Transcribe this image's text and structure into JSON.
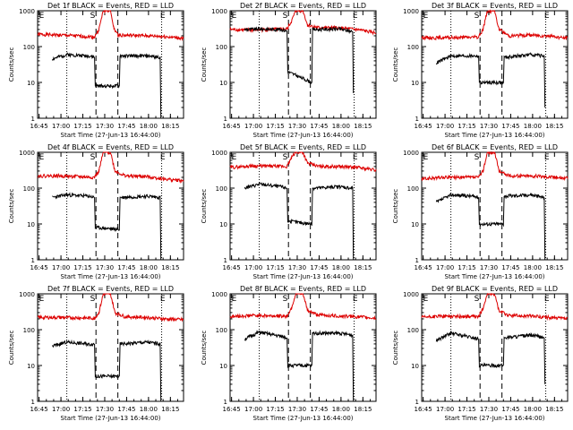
{
  "colors": {
    "events": "#000000",
    "lld": "#dd0000",
    "axis": "#000000"
  },
  "panel_common": {
    "ylabel": "Counts/sec",
    "y_tick_labels": [
      "1",
      "10",
      "100",
      "1000"
    ],
    "ylim": [
      1,
      1000
    ],
    "y_scale": "log",
    "xlabel": "Start Time (27-Jun-13 16:44:00)",
    "x_tick_labels": [
      "16:45",
      "17:00",
      "17:15",
      "17:30",
      "17:45",
      "18:00",
      "18:15"
    ],
    "xlim_minutes": [
      0,
      100
    ],
    "markers": [
      "E",
      "S",
      "E"
    ]
  },
  "chart_data": [
    {
      "type": "line",
      "title": "Det 1f BLACK = Events, RED = LLD",
      "dotted_x": [
        20,
        85
      ],
      "dashed_x": [
        40,
        55
      ],
      "series": [
        {
          "name": "LLD",
          "values": [
            [
              0,
              220
            ],
            [
              15,
              210
            ],
            [
              35,
              190
            ],
            [
              39,
              185
            ],
            [
              42,
              300
            ],
            [
              45,
              1000
            ],
            [
              50,
              1000
            ],
            [
              52,
              350
            ],
            [
              55,
              210
            ],
            [
              75,
              200
            ],
            [
              87,
              190
            ],
            [
              100,
              170
            ]
          ]
        },
        {
          "name": "Events",
          "values": [
            [
              10,
              45
            ],
            [
              20,
              60
            ],
            [
              35,
              55
            ],
            [
              39,
              50
            ],
            [
              39.5,
              8
            ],
            [
              56,
              8
            ],
            [
              56.5,
              55
            ],
            [
              75,
              55
            ],
            [
              84,
              50
            ],
            [
              84.5,
              1
            ]
          ]
        }
      ]
    },
    {
      "type": "line",
      "title": "Det 2f BLACK = Events, RED = LLD",
      "dotted_x": [
        20,
        85
      ],
      "dashed_x": [
        40,
        55
      ],
      "series": [
        {
          "name": "LLD",
          "values": [
            [
              0,
              300
            ],
            [
              15,
              290
            ],
            [
              39,
              310
            ],
            [
              42,
              500
            ],
            [
              45,
              1000
            ],
            [
              50,
              1000
            ],
            [
              53,
              400
            ],
            [
              60,
              340
            ],
            [
              75,
              330
            ],
            [
              87,
              300
            ],
            [
              100,
              240
            ]
          ]
        },
        {
          "name": "Events",
          "values": [
            [
              10,
              300
            ],
            [
              20,
              310
            ],
            [
              35,
              300
            ],
            [
              39,
              270
            ],
            [
              39.5,
              20
            ],
            [
              56,
              10
            ],
            [
              56.5,
              300
            ],
            [
              75,
              310
            ],
            [
              84,
              260
            ],
            [
              84.5,
              5
            ]
          ]
        }
      ]
    },
    {
      "type": "line",
      "title": "Det 3f BLACK = Events, RED = LLD",
      "dotted_x": [
        20,
        85
      ],
      "dashed_x": [
        40,
        55
      ],
      "series": [
        {
          "name": "LLD",
          "values": [
            [
              0,
              180
            ],
            [
              15,
              175
            ],
            [
              39,
              185
            ],
            [
              42,
              300
            ],
            [
              45,
              1000
            ],
            [
              50,
              1000
            ],
            [
              53,
              300
            ],
            [
              60,
              200
            ],
            [
              75,
              210
            ],
            [
              87,
              200
            ],
            [
              100,
              170
            ]
          ]
        },
        {
          "name": "Events",
          "values": [
            [
              10,
              35
            ],
            [
              20,
              55
            ],
            [
              35,
              55
            ],
            [
              39,
              55
            ],
            [
              39.5,
              10
            ],
            [
              56,
              10
            ],
            [
              56.5,
              50
            ],
            [
              75,
              60
            ],
            [
              84,
              55
            ],
            [
              84.5,
              2
            ]
          ]
        }
      ]
    },
    {
      "type": "line",
      "title": "Det 4f BLACK = Events, RED = LLD",
      "dotted_x": [
        20,
        85
      ],
      "dashed_x": [
        40,
        55
      ],
      "series": [
        {
          "name": "LLD",
          "values": [
            [
              0,
              220
            ],
            [
              15,
              220
            ],
            [
              39,
              200
            ],
            [
              42,
              300
            ],
            [
              45,
              1000
            ],
            [
              50,
              1000
            ],
            [
              53,
              300
            ],
            [
              60,
              220
            ],
            [
              75,
              210
            ],
            [
              87,
              180
            ],
            [
              100,
              160
            ]
          ]
        },
        {
          "name": "Events",
          "values": [
            [
              10,
              55
            ],
            [
              20,
              65
            ],
            [
              35,
              60
            ],
            [
              39,
              55
            ],
            [
              39.5,
              8
            ],
            [
              56,
              7
            ],
            [
              56.5,
              55
            ],
            [
              75,
              60
            ],
            [
              84,
              55
            ],
            [
              84.5,
              1
            ]
          ]
        }
      ]
    },
    {
      "type": "line",
      "title": "Det 5f BLACK = Events, RED = LLD",
      "dotted_x": [
        20,
        85
      ],
      "dashed_x": [
        40,
        55
      ],
      "series": [
        {
          "name": "LLD",
          "values": [
            [
              0,
              380
            ],
            [
              15,
              420
            ],
            [
              39,
              400
            ],
            [
              42,
              700
            ],
            [
              45,
              1000
            ],
            [
              50,
              1000
            ],
            [
              53,
              500
            ],
            [
              60,
              410
            ],
            [
              75,
              400
            ],
            [
              87,
              380
            ],
            [
              100,
              320
            ]
          ]
        },
        {
          "name": "Events",
          "values": [
            [
              10,
              100
            ],
            [
              20,
              130
            ],
            [
              35,
              110
            ],
            [
              39,
              100
            ],
            [
              39.5,
              12
            ],
            [
              56,
              10
            ],
            [
              56.5,
              100
            ],
            [
              75,
              110
            ],
            [
              84,
              100
            ],
            [
              84.5,
              1
            ]
          ]
        }
      ]
    },
    {
      "type": "line",
      "title": "Det 6f BLACK = Events, RED = LLD",
      "dotted_x": [
        20,
        85
      ],
      "dashed_x": [
        40,
        55
      ],
      "series": [
        {
          "name": "LLD",
          "values": [
            [
              0,
              180
            ],
            [
              15,
              200
            ],
            [
              39,
              200
            ],
            [
              42,
              300
            ],
            [
              45,
              1000
            ],
            [
              50,
              1000
            ],
            [
              53,
              300
            ],
            [
              60,
              220
            ],
            [
              75,
              220
            ],
            [
              87,
              210
            ],
            [
              100,
              190
            ]
          ]
        },
        {
          "name": "Events",
          "values": [
            [
              10,
              40
            ],
            [
              20,
              65
            ],
            [
              35,
              60
            ],
            [
              39,
              55
            ],
            [
              39.5,
              10
            ],
            [
              56,
              10
            ],
            [
              56.5,
              60
            ],
            [
              75,
              65
            ],
            [
              84,
              55
            ],
            [
              84.5,
              1
            ]
          ]
        }
      ]
    },
    {
      "type": "line",
      "title": "Det 7f BLACK = Events, RED = LLD",
      "dotted_x": [
        20,
        85
      ],
      "dashed_x": [
        40,
        55
      ],
      "series": [
        {
          "name": "LLD",
          "values": [
            [
              0,
              220
            ],
            [
              15,
              220
            ],
            [
              39,
              210
            ],
            [
              42,
              300
            ],
            [
              45,
              1000
            ],
            [
              50,
              1000
            ],
            [
              53,
              300
            ],
            [
              60,
              230
            ],
            [
              75,
              220
            ],
            [
              87,
              200
            ],
            [
              100,
              190
            ]
          ]
        },
        {
          "name": "Events",
          "values": [
            [
              10,
              35
            ],
            [
              20,
              45
            ],
            [
              35,
              40
            ],
            [
              39,
              40
            ],
            [
              39.5,
              5
            ],
            [
              56,
              5
            ],
            [
              56.5,
              40
            ],
            [
              75,
              45
            ],
            [
              84,
              40
            ],
            [
              84.5,
              1
            ]
          ]
        }
      ]
    },
    {
      "type": "line",
      "title": "Det 8f BLACK = Events, RED = LLD",
      "dotted_x": [
        20,
        85
      ],
      "dashed_x": [
        40,
        55
      ],
      "series": [
        {
          "name": "LLD",
          "values": [
            [
              0,
              230
            ],
            [
              15,
              250
            ],
            [
              39,
              240
            ],
            [
              42,
              400
            ],
            [
              45,
              1000
            ],
            [
              50,
              1000
            ],
            [
              53,
              350
            ],
            [
              60,
              260
            ],
            [
              75,
              240
            ],
            [
              87,
              230
            ],
            [
              100,
              210
            ]
          ]
        },
        {
          "name": "Events",
          "values": [
            [
              10,
              55
            ],
            [
              20,
              85
            ],
            [
              35,
              65
            ],
            [
              39,
              60
            ],
            [
              39.5,
              10
            ],
            [
              56,
              10
            ],
            [
              56.5,
              80
            ],
            [
              75,
              80
            ],
            [
              84,
              70
            ],
            [
              84.5,
              1
            ]
          ]
        }
      ]
    },
    {
      "type": "line",
      "title": "Det 9f BLACK = Events, RED = LLD",
      "dotted_x": [
        20,
        85
      ],
      "dashed_x": [
        40,
        55
      ],
      "series": [
        {
          "name": "LLD",
          "values": [
            [
              0,
              220
            ],
            [
              15,
              240
            ],
            [
              39,
              230
            ],
            [
              42,
              400
            ],
            [
              45,
              1000
            ],
            [
              50,
              1000
            ],
            [
              53,
              330
            ],
            [
              60,
              250
            ],
            [
              75,
              240
            ],
            [
              87,
              220
            ],
            [
              100,
              200
            ]
          ]
        },
        {
          "name": "Events",
          "values": [
            [
              10,
              50
            ],
            [
              20,
              80
            ],
            [
              35,
              60
            ],
            [
              39,
              55
            ],
            [
              39.5,
              10
            ],
            [
              56,
              10
            ],
            [
              56.5,
              60
            ],
            [
              75,
              70
            ],
            [
              84,
              60
            ],
            [
              84.5,
              3
            ]
          ]
        }
      ]
    }
  ]
}
